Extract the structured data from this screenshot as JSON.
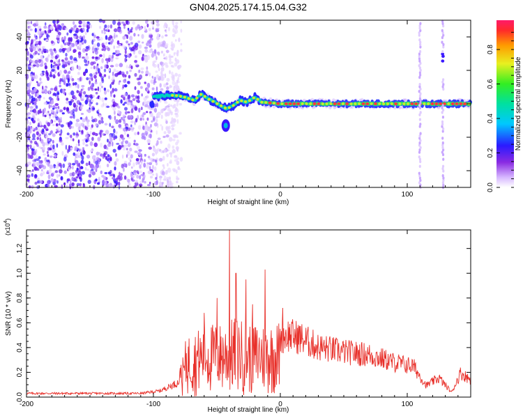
{
  "title": "GN04.2025.174.15.04.G32",
  "colors": {
    "snr_line": "#e8302a",
    "frame": "#000000"
  },
  "chart_data": [
    {
      "type": "heatmap",
      "xlabel": "Height of straight line (km)",
      "ylabel": "Frequency (Hz)",
      "xlim": [
        -200,
        150
      ],
      "ylim": [
        -50,
        50
      ],
      "xticks": [
        -200,
        -100,
        0,
        100
      ],
      "yticks": [
        -40,
        -20,
        0,
        20,
        40
      ],
      "colorbar": {
        "label": "Normalized spectral amplitude",
        "range": [
          0,
          0.97
        ],
        "ticks": [
          0.0,
          0.2,
          0.4,
          0.6,
          0.8
        ],
        "colormap": "rainbow"
      },
      "features": {
        "noise_region_x": [
          -200,
          -90
        ],
        "track": [
          {
            "x": -100,
            "y": 4
          },
          {
            "x": -90,
            "y": 5
          },
          {
            "x": -82,
            "y": 5
          },
          {
            "x": -75,
            "y": 4
          },
          {
            "x": -68,
            "y": 2
          },
          {
            "x": -62,
            "y": 6
          },
          {
            "x": -57,
            "y": 3
          },
          {
            "x": -52,
            "y": 1
          },
          {
            "x": -47,
            "y": -1
          },
          {
            "x": -42,
            "y": -3
          },
          {
            "x": -37,
            "y": -1
          },
          {
            "x": -32,
            "y": 2
          },
          {
            "x": -26,
            "y": 1
          },
          {
            "x": -20,
            "y": 4
          },
          {
            "x": -15,
            "y": 1
          },
          {
            "x": 0,
            "y": 0
          },
          {
            "x": 50,
            "y": 0
          },
          {
            "x": 100,
            "y": 0
          },
          {
            "x": 150,
            "y": 0
          }
        ],
        "blob": {
          "x": -43,
          "y": -13
        },
        "vertical_lines_x": [
          110,
          128
        ]
      }
    },
    {
      "type": "line",
      "xlabel": "Height of straight line (km)",
      "ylabel": "SNR (10 * v/v)",
      "exponent_label": "(x10",
      "exponent_power": "4",
      "exponent_close": ")",
      "xlim": [
        -200,
        150
      ],
      "ylim": [
        0,
        1.35
      ],
      "xticks": [
        -200,
        -100,
        0,
        100
      ],
      "yticks": [
        "0.0",
        "0.2",
        "0.4",
        "0.6",
        "0.8",
        "1.0",
        "1.2"
      ],
      "envelope": [
        {
          "x": -200,
          "y": 0.03
        },
        {
          "x": -110,
          "y": 0.03
        },
        {
          "x": -95,
          "y": 0.05
        },
        {
          "x": -80,
          "y": 0.12
        },
        {
          "x": -74,
          "y": 0.5
        },
        {
          "x": -65,
          "y": 0.55
        },
        {
          "x": -55,
          "y": 0.6
        },
        {
          "x": -45,
          "y": 0.6
        },
        {
          "x": -35,
          "y": 0.65
        },
        {
          "x": -25,
          "y": 0.6
        },
        {
          "x": -15,
          "y": 0.6
        },
        {
          "x": -5,
          "y": 0.6
        },
        {
          "x": 5,
          "y": 0.65
        },
        {
          "x": 15,
          "y": 0.62
        },
        {
          "x": 30,
          "y": 0.52
        },
        {
          "x": 50,
          "y": 0.47
        },
        {
          "x": 70,
          "y": 0.44
        },
        {
          "x": 90,
          "y": 0.36
        },
        {
          "x": 105,
          "y": 0.32
        },
        {
          "x": 115,
          "y": 0.12
        },
        {
          "x": 125,
          "y": 0.2
        },
        {
          "x": 135,
          "y": 0.05
        },
        {
          "x": 142,
          "y": 0.25
        },
        {
          "x": 150,
          "y": 0.18
        }
      ],
      "spikes": [
        {
          "x": -40,
          "y": 1.35
        },
        {
          "x": -35,
          "y": 1.0
        },
        {
          "x": -27,
          "y": 0.95
        },
        {
          "x": -12,
          "y": 1.03
        },
        {
          "x": -60,
          "y": 0.68
        },
        {
          "x": -50,
          "y": 0.8
        },
        {
          "x": -22,
          "y": 0.75
        },
        {
          "x": 2,
          "y": 0.72
        }
      ]
    }
  ]
}
